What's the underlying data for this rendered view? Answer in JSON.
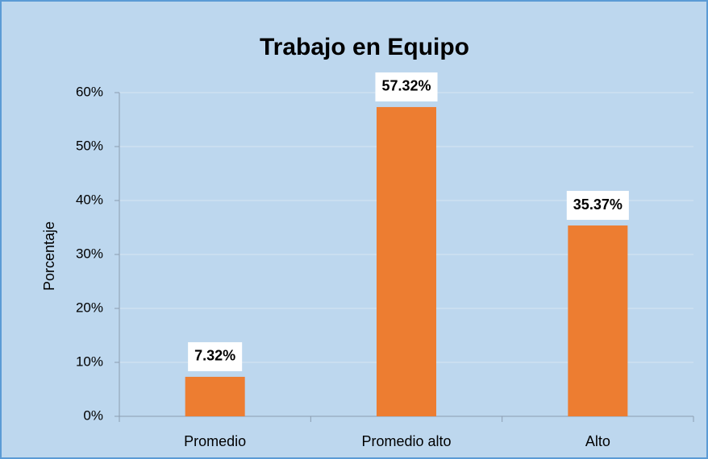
{
  "chart_data": {
    "type": "bar",
    "title": "Trabajo en Equipo",
    "y_label": "Porcentaje",
    "categories": [
      "Promedio",
      "Promedio alto",
      "Alto"
    ],
    "values": [
      7.32,
      57.32,
      35.37
    ],
    "value_labels": [
      "7.32%",
      "57.32%",
      "35.37%"
    ],
    "color": "#ed7d31",
    "ylim": [
      0,
      60
    ],
    "yticks": [
      {
        "value": 0,
        "label": "0%"
      },
      {
        "value": 10,
        "label": "10%"
      },
      {
        "value": 20,
        "label": "20%"
      },
      {
        "value": 30,
        "label": "30%"
      },
      {
        "value": 40,
        "label": "40%"
      },
      {
        "value": 50,
        "label": "50%"
      },
      {
        "value": 60,
        "label": "60%"
      }
    ],
    "grid": true
  }
}
